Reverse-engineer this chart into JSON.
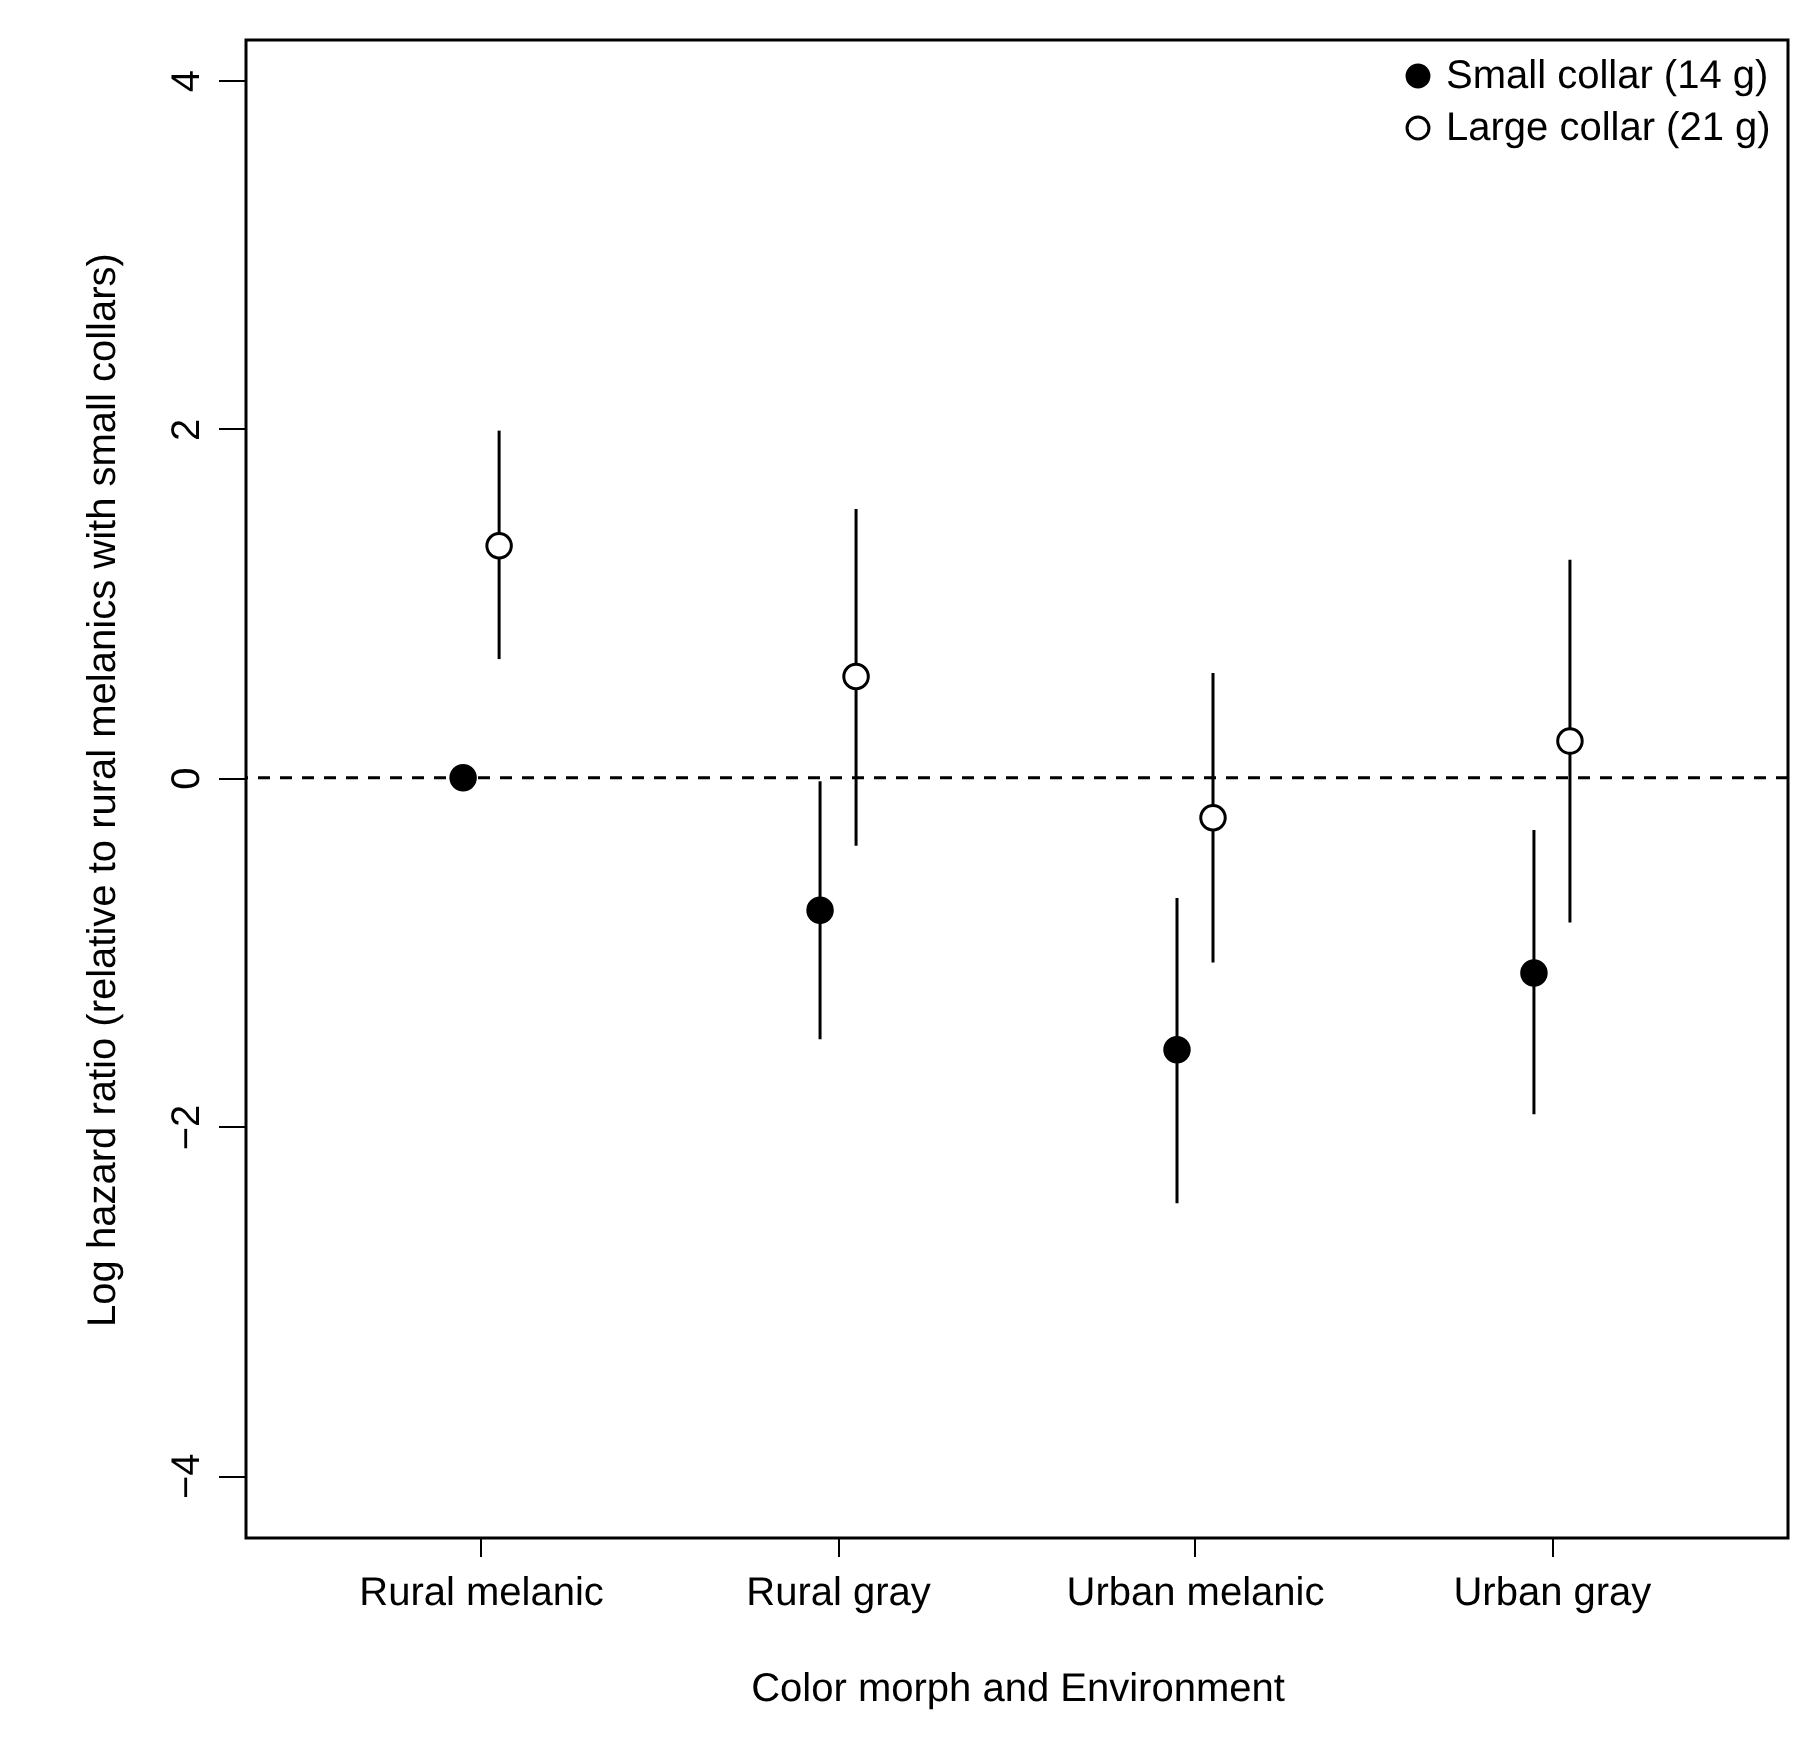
{
  "chart_data": {
    "type": "scatter",
    "xlabel": "Color morph and Environment",
    "ylabel": "Log hazard ratio (relative to rural melanics with small collars)",
    "categories": [
      "Rural melanic",
      "Rural gray",
      "Urban melanic",
      "Urban gray"
    ],
    "series": [
      {
        "name": "Small collar (14 g)",
        "color": "#000000",
        "values": [
          0,
          -0.76,
          -1.56,
          -1.12
        ],
        "errors": [
          null,
          [
            -1.5,
            -0.02
          ],
          [
            -2.44,
            -0.69
          ],
          [
            -1.93,
            -0.3
          ]
        ]
      },
      {
        "name": "Large collar (21 g)",
        "color": "#ffffff",
        "values": [
          1.33,
          0.58,
          -0.23,
          0.21
        ],
        "errors": [
          [
            0.68,
            1.99
          ],
          [
            -0.39,
            1.54
          ],
          [
            -1.06,
            0.6
          ],
          [
            -0.83,
            1.25
          ]
        ]
      }
    ],
    "ylim": [
      -4.36,
      4.23
    ],
    "yticks": [
      -4,
      -2,
      0,
      2,
      4
    ],
    "ref_lines": [
      {
        "axis": "y",
        "value": 0,
        "line_style": "dashed"
      }
    ],
    "legend": "top right",
    "marker": "circle",
    "grid": false
  }
}
